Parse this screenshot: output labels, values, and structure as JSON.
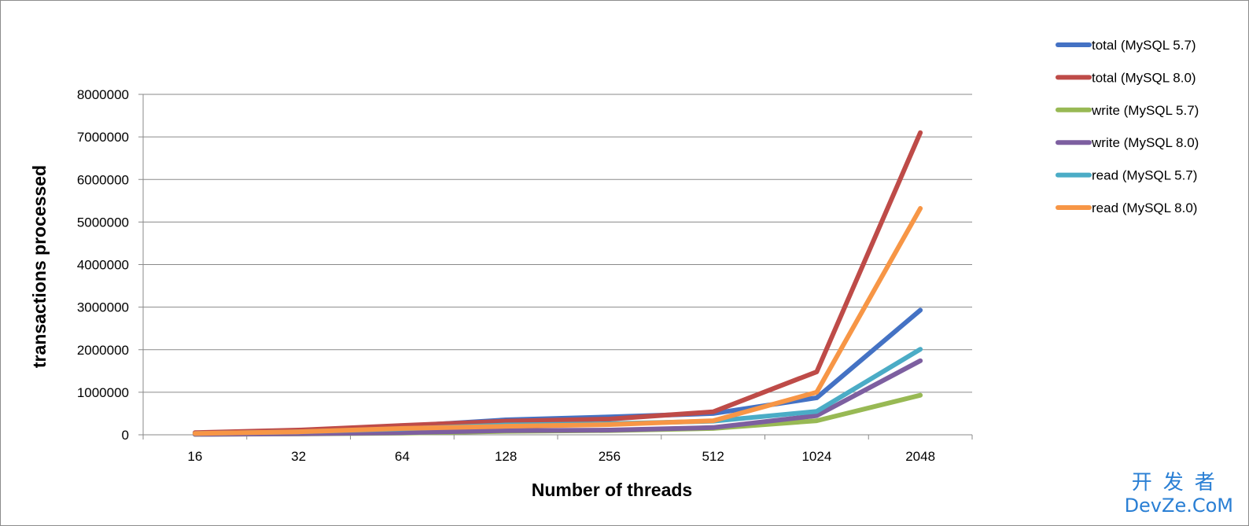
{
  "chart_data": {
    "type": "line",
    "title": "",
    "xlabel": "Number of threads",
    "ylabel": "transactions processed",
    "categories": [
      "16",
      "32",
      "64",
      "128",
      "256",
      "512",
      "1024",
      "2048"
    ],
    "ylim": [
      0,
      8000000
    ],
    "yticks": [
      0,
      1000000,
      2000000,
      3000000,
      4000000,
      5000000,
      6000000,
      7000000,
      8000000
    ],
    "grid": true,
    "legend_position": "right",
    "series": [
      {
        "name": "total (MySQL 5.7)",
        "color": "#4472c4",
        "values": [
          40000,
          100000,
          200000,
          350000,
          420000,
          500000,
          870000,
          2930000
        ]
      },
      {
        "name": "total (MySQL 8.0)",
        "color": "#be4b48",
        "values": [
          50000,
          110000,
          220000,
          320000,
          370000,
          540000,
          1480000,
          7100000
        ]
      },
      {
        "name": "write (MySQL 5.7)",
        "color": "#98b954",
        "values": [
          10000,
          20000,
          40000,
          80000,
          100000,
          150000,
          330000,
          930000
        ]
      },
      {
        "name": "write (MySQL 8.0)",
        "color": "#7d5fa0",
        "values": [
          12000,
          25000,
          50000,
          100000,
          110000,
          170000,
          450000,
          1740000
        ]
      },
      {
        "name": "read (MySQL 5.7)",
        "color": "#4bacc6",
        "values": [
          30000,
          70000,
          140000,
          230000,
          260000,
          320000,
          550000,
          2010000
        ]
      },
      {
        "name": "read (MySQL 8.0)",
        "color": "#f79646",
        "values": [
          30000,
          70000,
          150000,
          200000,
          240000,
          330000,
          1000000,
          5320000
        ]
      }
    ]
  },
  "watermark": {
    "cn": "开发者",
    "en": "DevZe.CoM"
  }
}
